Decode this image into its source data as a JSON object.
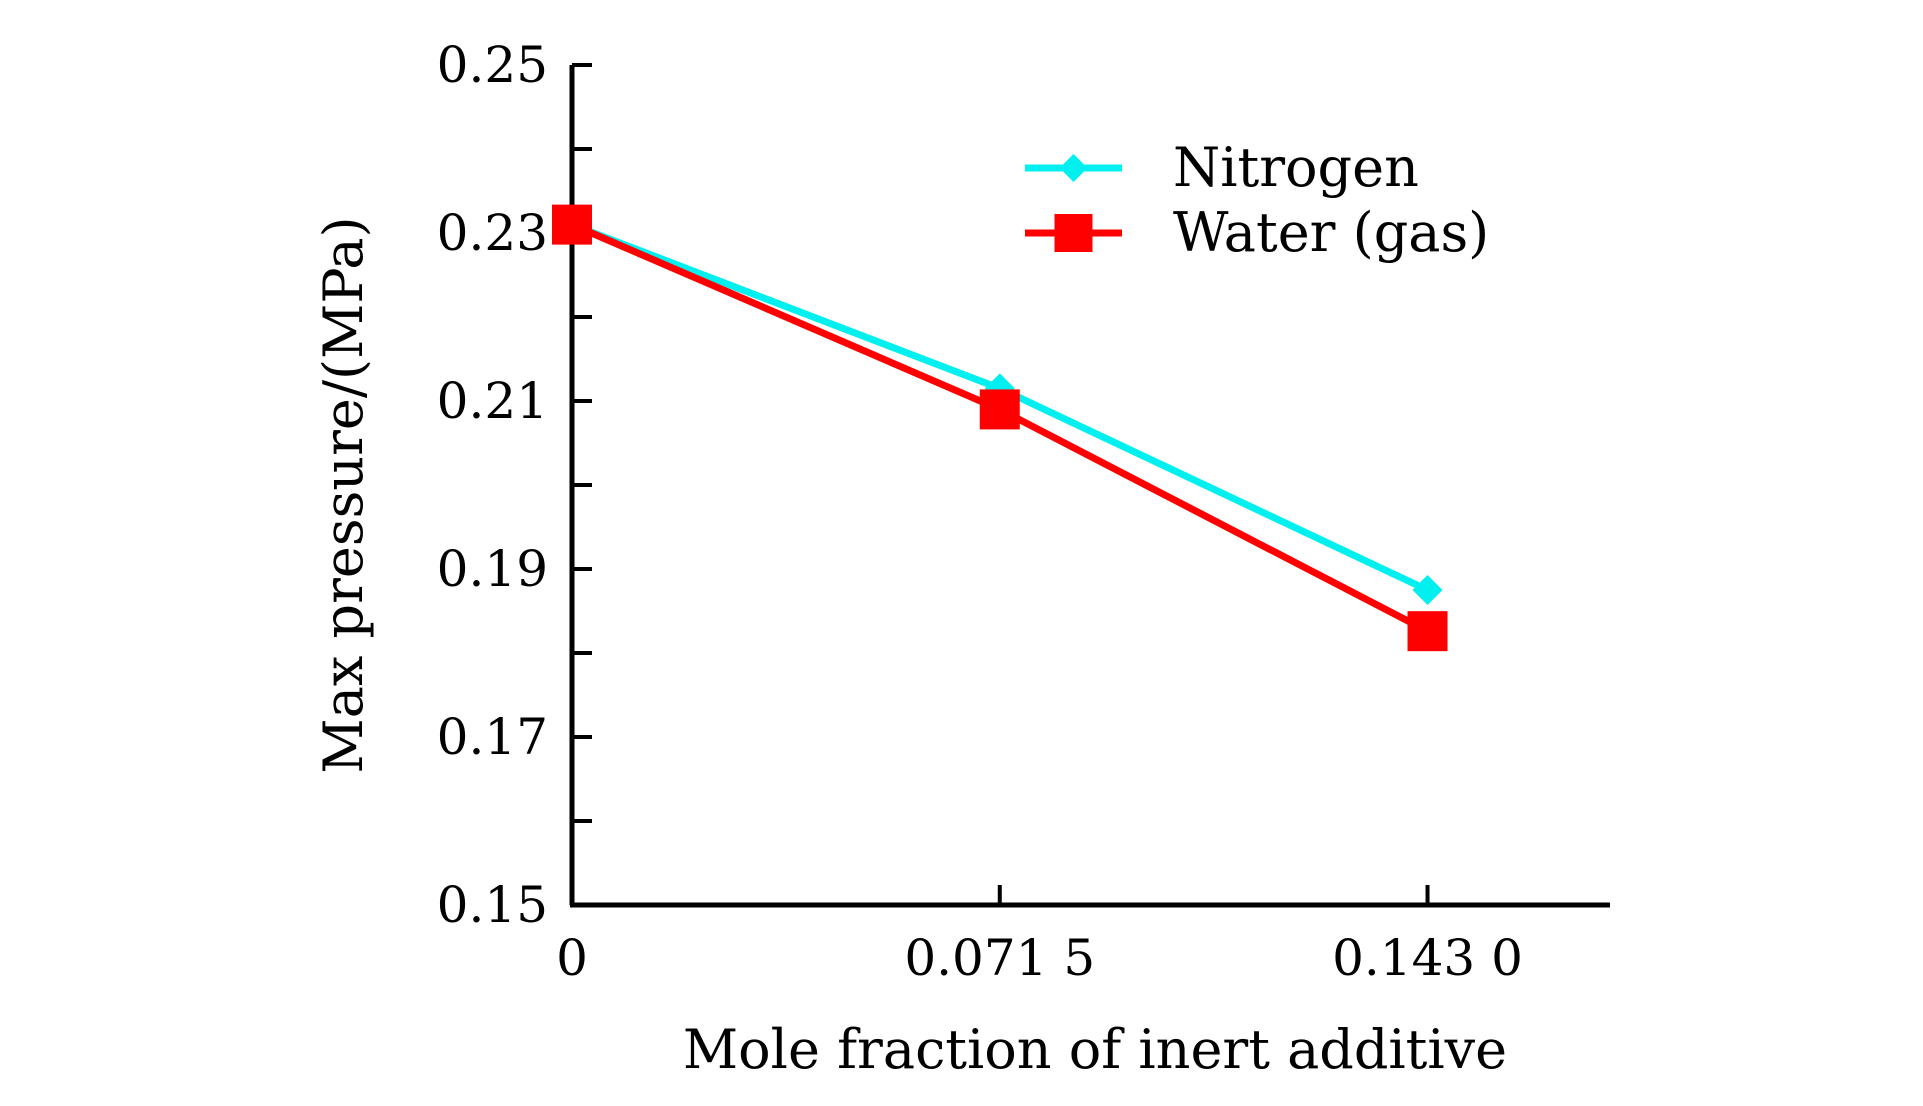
{
  "chart_data": {
    "type": "line",
    "title": "",
    "xlabel": "Mole fraction of inert additive",
    "ylabel": "Max pressure/(MPa)",
    "x": [
      0,
      0.0715,
      0.143
    ],
    "x_tick_labels": [
      "0",
      "0.071 5",
      "0.143 0"
    ],
    "y_ticks": [
      0.15,
      0.17,
      0.19,
      0.21,
      0.23,
      0.25
    ],
    "y_tick_labels": [
      "0.15",
      "0.17",
      "0.19",
      "0.21",
      "0.23",
      "0.25"
    ],
    "ylim": [
      0.15,
      0.25
    ],
    "xlim": [
      0,
      0.1735
    ],
    "grid": false,
    "legend_position": "top-right",
    "series": [
      {
        "name": "Nitrogen",
        "values": [
          0.231,
          0.2115,
          0.1875
        ],
        "color": "#00f0f0",
        "marker": "diamond"
      },
      {
        "name": "Water (gas)",
        "values": [
          0.231,
          0.209,
          0.1826
        ],
        "color": "#ff0000",
        "marker": "square"
      }
    ]
  }
}
